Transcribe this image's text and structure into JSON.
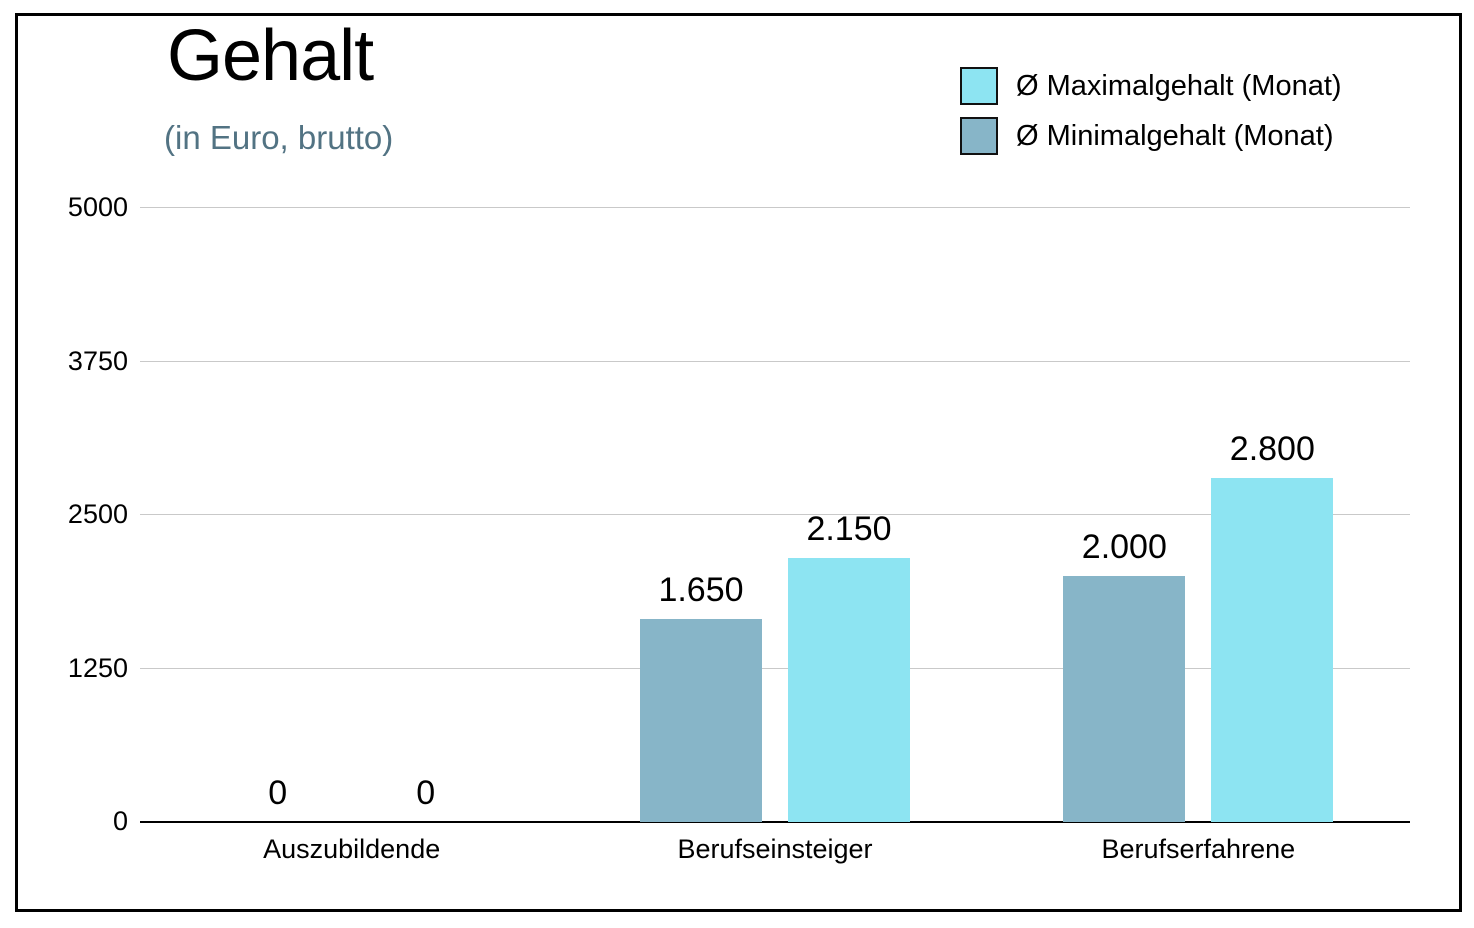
{
  "chart_data": {
    "type": "bar",
    "title": "Gehalt",
    "subtitle": "(in Euro, brutto)",
    "categories": [
      "Auszubildende",
      "Berufseinsteiger",
      "Berufserfahrene"
    ],
    "series": [
      {
        "name": "Ø Minimalgehalt (Monat)",
        "color": "#87b5c8",
        "values": [
          0,
          1650,
          2000
        ],
        "value_labels": [
          "0",
          "1.650",
          "2.000"
        ]
      },
      {
        "name": "Ø Maximalgehalt (Monat)",
        "color": "#8de4f2",
        "values": [
          0,
          2150,
          2800
        ],
        "value_labels": [
          "0",
          "2.150",
          "2.800"
        ]
      }
    ],
    "legend": [
      {
        "series_index": 1
      },
      {
        "series_index": 0
      }
    ],
    "legend_position": "top-right",
    "ylim": [
      0,
      5000
    ],
    "yticks": [
      0,
      1250,
      2500,
      3750,
      5000
    ],
    "grid": true
  },
  "colors": {
    "max_bar": "#8de4f2",
    "min_bar": "#87b5c8",
    "subtitle_text": "#527383",
    "gridline": "#c9c9c9",
    "axis": "#000000"
  }
}
